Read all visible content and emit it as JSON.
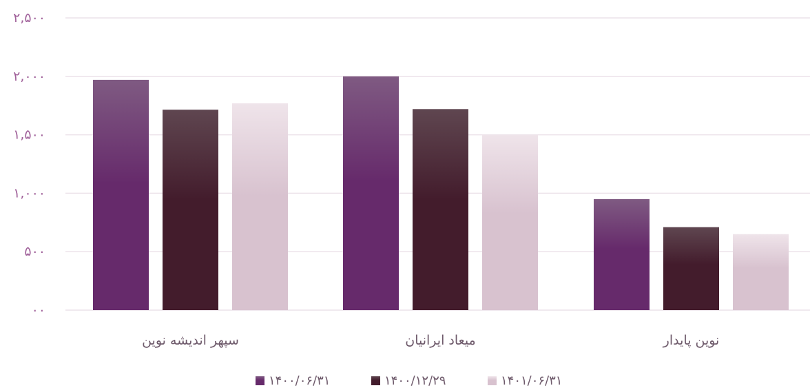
{
  "chart_data": {
    "type": "bar",
    "categories": [
      "سپهر اندیشه نوین",
      "میعاد ایرانیان",
      "نوین پایدار"
    ],
    "series": [
      {
        "name": "۱۴۰۰/۰۶/۳۱",
        "values": [
          1970,
          2000,
          950
        ],
        "color_top": "#7f5a82",
        "color_bottom": "#662a6b"
      },
      {
        "name": "۱۴۰۰/۱۲/۲۹",
        "values": [
          1715,
          1720,
          710
        ],
        "color_top": "#5f4650",
        "color_bottom": "#431c2c"
      },
      {
        "name": "۱۴۰۱/۰۶/۳۱",
        "values": [
          1770,
          1500,
          650
        ],
        "color_top": "#efe4ea",
        "color_bottom": "#d8c2cf"
      }
    ],
    "ylim": [
      0,
      2500
    ],
    "yticks": [
      0,
      500,
      1000,
      1500,
      2000,
      2500
    ],
    "ytick_labels": [
      "۰۰",
      "۵۰۰",
      "۱,۰۰۰",
      "۱,۵۰۰",
      "۲,۰۰۰",
      "۲,۵۰۰"
    ],
    "title": "",
    "xlabel": "",
    "ylabel": "",
    "grid": true,
    "legend_position": "bottom-center",
    "colors": {
      "axis_text": "#a0619a",
      "category_text": "#6e5a6b",
      "grid": "#ece2ea"
    }
  }
}
